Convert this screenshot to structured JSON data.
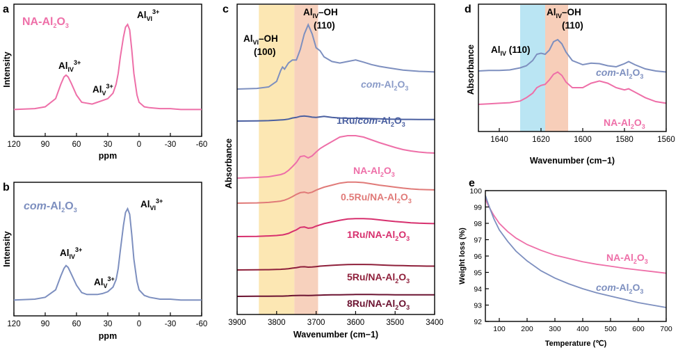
{
  "colors": {
    "pink": "#ee6fa8",
    "blue": "#7d8fbf",
    "darkblue": "#4a5fa0",
    "salmon": "#e07a78",
    "magenta": "#d7306e",
    "wine": "#8e1f3a",
    "wine2": "#6b1230",
    "yellow_band": "#fbe3a6",
    "orange_band": "#f6c9b1",
    "cyan_band": "#b2e2f2"
  },
  "chart_data": [
    {
      "panel": "a",
      "type": "line",
      "xlabel": "ppm",
      "ylabel": "Intensity",
      "xlim": [
        120,
        -60
      ],
      "xticks": [
        "120",
        "90",
        "60",
        "30",
        "0",
        "-30",
        "-60"
      ],
      "series": [
        {
          "name": "NA-Al2O3",
          "x": [
            120,
            100,
            90,
            80,
            75,
            72,
            70,
            68,
            65,
            60,
            55,
            50,
            45,
            40,
            35,
            30,
            25,
            22,
            20,
            18,
            15,
            13,
            11,
            9,
            7,
            5,
            2,
            0,
            -5,
            -10,
            -20,
            -30,
            -40,
            -60
          ],
          "y": [
            0.02,
            0.03,
            0.05,
            0.14,
            0.3,
            0.38,
            0.4,
            0.38,
            0.31,
            0.18,
            0.1,
            0.09,
            0.08,
            0.1,
            0.12,
            0.14,
            0.2,
            0.3,
            0.42,
            0.6,
            0.82,
            0.93,
            0.96,
            0.9,
            0.68,
            0.42,
            0.18,
            0.1,
            0.05,
            0.04,
            0.03,
            0.03,
            0.02,
            0.02
          ]
        }
      ],
      "labels": {
        "title": "NA-Al2O3",
        "peak1": "AlIV3+",
        "peak2": "AlV3+",
        "peak3": "AlVI3+"
      }
    },
    {
      "panel": "b",
      "type": "line",
      "xlabel": "ppm",
      "ylabel": "Intensity",
      "xlim": [
        120,
        -60
      ],
      "xticks": [
        "120",
        "90",
        "60",
        "30",
        "0",
        "-30",
        "-60"
      ],
      "series": [
        {
          "name": "com-Al2O3",
          "x": [
            120,
            100,
            90,
            80,
            75,
            72,
            70,
            68,
            65,
            60,
            55,
            50,
            45,
            40,
            35,
            30,
            25,
            22,
            20,
            18,
            15,
            13,
            11,
            9,
            7,
            5,
            2,
            0,
            -5,
            -10,
            -20,
            -30,
            -40,
            -60
          ],
          "y": [
            0.02,
            0.03,
            0.05,
            0.13,
            0.28,
            0.36,
            0.39,
            0.37,
            0.3,
            0.18,
            0.1,
            0.08,
            0.08,
            0.08,
            0.09,
            0.11,
            0.16,
            0.24,
            0.36,
            0.55,
            0.82,
            0.96,
            1.0,
            0.94,
            0.72,
            0.46,
            0.22,
            0.13,
            0.07,
            0.05,
            0.03,
            0.03,
            0.02,
            0.02
          ]
        }
      ],
      "labels": {
        "title": "com-Al2O3",
        "peak1": "AlIV3+",
        "peak2": "AlV3+",
        "peak3": "AlVI3+"
      }
    },
    {
      "panel": "c",
      "type": "line",
      "xlabel": "Wavenumber (cm−1)",
      "ylabel": "Absorbance",
      "xlim": [
        3900,
        3400
      ],
      "xticks": [
        "3900",
        "3800",
        "3700",
        "3600",
        "3500",
        "3400"
      ],
      "bands": [
        [
          3845,
          3755
        ],
        [
          3755,
          3695
        ]
      ],
      "annotations": {
        "a1_line1": "AlVI–OH",
        "a1_line2": "(100)",
        "a2_line1": "AlIV–OH",
        "a2_line2": "(110)"
      },
      "x": [
        3900,
        3850,
        3820,
        3800,
        3790,
        3785,
        3780,
        3770,
        3760,
        3750,
        3740,
        3730,
        3720,
        3710,
        3700,
        3690,
        3680,
        3660,
        3640,
        3620,
        3600,
        3580,
        3560,
        3540,
        3520,
        3500,
        3480,
        3460,
        3440,
        3420,
        3400
      ],
      "series": [
        {
          "name": "com-Al2O3",
          "values": [
            0.0,
            0.02,
            0.07,
            0.25,
            0.6,
            0.72,
            0.65,
            0.85,
            0.95,
            0.95,
            1.3,
            1.8,
            2.1,
            1.8,
            1.35,
            1.25,
            1.05,
            0.9,
            0.85,
            0.9,
            0.95,
            0.88,
            0.8,
            0.74,
            0.7,
            0.66,
            0.62,
            0.6,
            0.58,
            0.57,
            0.56
          ]
        },
        {
          "name": "1Ru/com-Al2O3",
          "values": [
            0.0,
            0.01,
            0.03,
            0.06,
            0.08,
            0.09,
            0.1,
            0.14,
            0.22,
            0.26,
            0.34,
            0.36,
            0.33,
            0.28,
            0.26,
            0.3,
            0.34,
            0.26,
            0.22,
            0.2,
            0.2,
            0.2,
            0.18,
            0.16,
            0.14,
            0.13,
            0.12,
            0.12,
            0.11,
            0.11,
            0.11
          ]
        },
        {
          "name": "NA-Al2O3",
          "values": [
            0.0,
            0.02,
            0.04,
            0.08,
            0.1,
            0.12,
            0.14,
            0.22,
            0.33,
            0.45,
            0.62,
            0.64,
            0.58,
            0.64,
            0.75,
            0.85,
            0.92,
            1.05,
            1.18,
            1.22,
            1.22,
            1.18,
            1.1,
            1.02,
            0.95,
            0.88,
            0.82,
            0.78,
            0.75,
            0.73,
            0.72
          ]
        },
        {
          "name": "0.5Ru/NA-Al2O3",
          "values": [
            0.0,
            0.01,
            0.03,
            0.06,
            0.08,
            0.1,
            0.12,
            0.18,
            0.26,
            0.35,
            0.42,
            0.44,
            0.4,
            0.44,
            0.52,
            0.58,
            0.64,
            0.72,
            0.8,
            0.84,
            0.84,
            0.82,
            0.77,
            0.72,
            0.68,
            0.64,
            0.6,
            0.57,
            0.55,
            0.54,
            0.53
          ]
        },
        {
          "name": "1Ru/NA-Al2O3",
          "values": [
            0.0,
            0.01,
            0.03,
            0.05,
            0.07,
            0.08,
            0.1,
            0.15,
            0.24,
            0.32,
            0.44,
            0.46,
            0.4,
            0.42,
            0.5,
            0.56,
            0.62,
            0.7,
            0.78,
            0.84,
            0.86,
            0.86,
            0.84,
            0.8,
            0.76,
            0.72,
            0.69,
            0.66,
            0.64,
            0.63,
            0.62
          ]
        },
        {
          "name": "5Ru/NA-Al2O3",
          "values": [
            0.0,
            0.01,
            0.02,
            0.03,
            0.04,
            0.05,
            0.06,
            0.08,
            0.12,
            0.15,
            0.2,
            0.21,
            0.18,
            0.19,
            0.22,
            0.25,
            0.27,
            0.3,
            0.33,
            0.35,
            0.36,
            0.36,
            0.35,
            0.33,
            0.31,
            0.29,
            0.28,
            0.27,
            0.26,
            0.25,
            0.25
          ]
        },
        {
          "name": "8Ru/NA-Al2O3",
          "values": [
            0.0,
            0.01,
            0.01,
            0.02,
            0.02,
            0.02,
            0.03,
            0.04,
            0.06,
            0.07,
            0.08,
            0.08,
            0.07,
            0.08,
            0.09,
            0.1,
            0.11,
            0.12,
            0.13,
            0.14,
            0.15,
            0.15,
            0.15,
            0.14,
            0.14,
            0.13,
            0.13,
            0.12,
            0.12,
            0.12,
            0.12
          ]
        }
      ]
    },
    {
      "panel": "d",
      "type": "line",
      "xlabel": "Wavenumber (cm−1)",
      "ylabel": "Absorbance",
      "xlim": [
        1650,
        1560
      ],
      "xticks": [
        "1640",
        "1620",
        "1600",
        "1580",
        "1560"
      ],
      "bands": [
        [
          1630,
          1618
        ],
        [
          1618,
          1607
        ]
      ],
      "annotations": {
        "a1": "AlIV (110)",
        "a2_line1": "AlIV–OH",
        "a2_line2": "(110)"
      },
      "x": [
        1650,
        1645,
        1640,
        1635,
        1630,
        1627,
        1624,
        1622,
        1620,
        1618,
        1616,
        1614,
        1612,
        1610,
        1608,
        1605,
        1600,
        1596,
        1592,
        1588,
        1584,
        1580,
        1578,
        1575,
        1570,
        1565,
        1560
      ],
      "series": [
        {
          "name": "com-Al2O3",
          "values": [
            0.3,
            0.31,
            0.31,
            0.32,
            0.36,
            0.4,
            0.5,
            0.62,
            0.64,
            0.62,
            0.7,
            0.86,
            0.9,
            0.82,
            0.66,
            0.5,
            0.42,
            0.45,
            0.44,
            0.4,
            0.38,
            0.44,
            0.48,
            0.42,
            0.34,
            0.3,
            0.28
          ]
        },
        {
          "name": "NA-Al2O3",
          "values": [
            0.0,
            0.01,
            0.02,
            0.03,
            0.06,
            0.12,
            0.2,
            0.3,
            0.34,
            0.36,
            0.44,
            0.54,
            0.58,
            0.52,
            0.4,
            0.3,
            0.3,
            0.38,
            0.42,
            0.38,
            0.3,
            0.26,
            0.28,
            0.22,
            0.12,
            0.05,
            0.02
          ]
        }
      ]
    },
    {
      "panel": "e",
      "type": "line",
      "xlabel": "Temperature (℃)",
      "ylabel": "Weight loss (%)",
      "xlim": [
        50,
        700
      ],
      "ylim": [
        92,
        100
      ],
      "xticks": [
        "100",
        "200",
        "300",
        "400",
        "500",
        "600",
        "700"
      ],
      "yticks": [
        "92",
        "93",
        "94",
        "95",
        "96",
        "97",
        "98",
        "99",
        "100"
      ],
      "x": [
        50,
        60,
        80,
        100,
        130,
        160,
        200,
        250,
        300,
        350,
        400,
        450,
        500,
        550,
        600,
        650,
        700
      ],
      "series": [
        {
          "name": "NA-Al2O3",
          "values": [
            99.5,
            99.1,
            98.5,
            98.0,
            97.5,
            97.1,
            96.7,
            96.35,
            96.05,
            95.85,
            95.65,
            95.5,
            95.38,
            95.25,
            95.15,
            95.05,
            94.95
          ]
        },
        {
          "name": "com-Al2O3",
          "values": [
            99.7,
            99.2,
            98.3,
            97.6,
            96.9,
            96.3,
            95.7,
            95.1,
            94.65,
            94.3,
            94.0,
            93.75,
            93.55,
            93.35,
            93.15,
            93.0,
            92.85
          ]
        }
      ]
    }
  ],
  "panel_letters": [
    "a",
    "b",
    "c",
    "d",
    "e"
  ]
}
